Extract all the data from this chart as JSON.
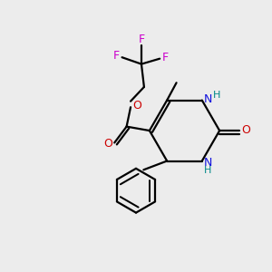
{
  "bg_color": "#ececec",
  "bond_color": "#000000",
  "N_color": "#1010dd",
  "O_color": "#cc0000",
  "F_color": "#cc00cc",
  "NH_color": "#008888",
  "line_width": 1.6,
  "figsize": [
    3.0,
    3.0
  ],
  "dpi": 100,
  "xlim": [
    0,
    10
  ],
  "ylim": [
    0,
    10
  ]
}
